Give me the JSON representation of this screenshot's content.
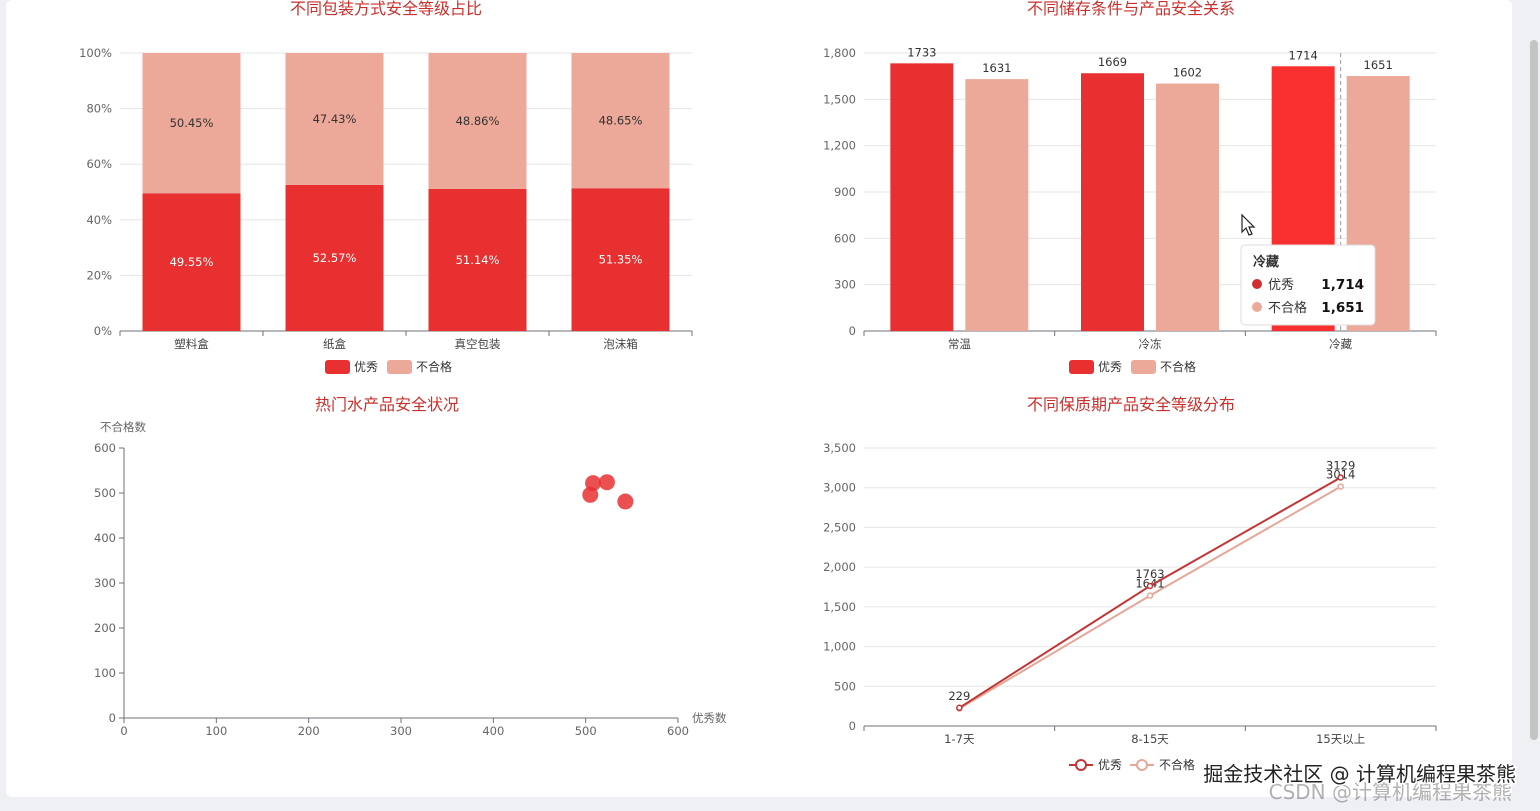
{
  "colors": {
    "excellent": "#e83030",
    "fail": "#eca898",
    "title": "#c9302c",
    "line_excellent": "#c33535",
    "line_fail": "#e5a898"
  },
  "chart_data": [
    {
      "type": "bar",
      "stacked": true,
      "percent": true,
      "title": "不同包装方式安全等级占比",
      "categories": [
        "塑料盒",
        "纸盒",
        "真空包装",
        "泡沫箱"
      ],
      "yticks": [
        "0%",
        "20%",
        "40%",
        "60%",
        "80%",
        "100%"
      ],
      "ylim": [
        0,
        100
      ],
      "series": [
        {
          "name": "优秀",
          "values": [
            49.55,
            52.57,
            51.14,
            51.35
          ],
          "labels": [
            "49.55%",
            "52.57%",
            "51.14%",
            "51.35%"
          ]
        },
        {
          "name": "不合格",
          "values": [
            50.45,
            47.43,
            48.86,
            48.65
          ],
          "labels": [
            "50.45%",
            "47.43%",
            "48.86%",
            "48.65%"
          ]
        }
      ],
      "legend": [
        "优秀",
        "不合格"
      ],
      "legend_position": "bottom"
    },
    {
      "type": "bar",
      "title": "不同储存条件与产品安全关系",
      "categories": [
        "常温",
        "冷冻",
        "冷藏"
      ],
      "yticks": [
        "0",
        "300",
        "600",
        "900",
        "1,200",
        "1,500",
        "1,800"
      ],
      "ylim": [
        0,
        1800
      ],
      "series": [
        {
          "name": "优秀",
          "values": [
            1733,
            1669,
            1714
          ]
        },
        {
          "name": "不合格",
          "values": [
            1631,
            1602,
            1651
          ]
        }
      ],
      "legend": [
        "优秀",
        "不合格"
      ],
      "legend_position": "bottom",
      "tooltip": {
        "title": "冷藏",
        "rows": [
          {
            "name": "优秀",
            "value": "1,714"
          },
          {
            "name": "不合格",
            "value": "1,651"
          }
        ]
      }
    },
    {
      "type": "scatter",
      "title": "热门水产品安全状况",
      "xlabel": "优秀数",
      "ylabel": "不合格数",
      "xlim": [
        0,
        600
      ],
      "ylim": [
        0,
        600
      ],
      "xticks": [
        "0",
        "100",
        "200",
        "300",
        "400",
        "500",
        "600"
      ],
      "yticks": [
        "0",
        "100",
        "200",
        "300",
        "400",
        "500",
        "600"
      ],
      "points": [
        [
          508,
          522
        ],
        [
          523,
          524
        ],
        [
          505,
          496
        ],
        [
          543,
          481
        ]
      ]
    },
    {
      "type": "line",
      "title": "不同保质期产品安全等级分布",
      "categories": [
        "1-7天",
        "8-15天",
        "15天以上"
      ],
      "ylim": [
        0,
        3500
      ],
      "yticks": [
        "0",
        "500",
        "1,000",
        "1,500",
        "2,000",
        "2,500",
        "3,000",
        "3,500"
      ],
      "series": [
        {
          "name": "优秀",
          "values": [
            229,
            1763,
            3129
          ],
          "labels": [
            "229",
            "1763",
            "3129"
          ]
        },
        {
          "name": "不合格",
          "values": [
            219,
            1641,
            3014
          ],
          "labels": [
            "",
            "1641",
            "3014"
          ]
        }
      ],
      "legend": [
        "优秀",
        "不合格"
      ],
      "legend_position": "bottom"
    }
  ],
  "watermark": {
    "line1": "掘金技术社区 @ 计算机编程果茶熊",
    "line2": "CSDN @计算机编程果茶熊"
  }
}
